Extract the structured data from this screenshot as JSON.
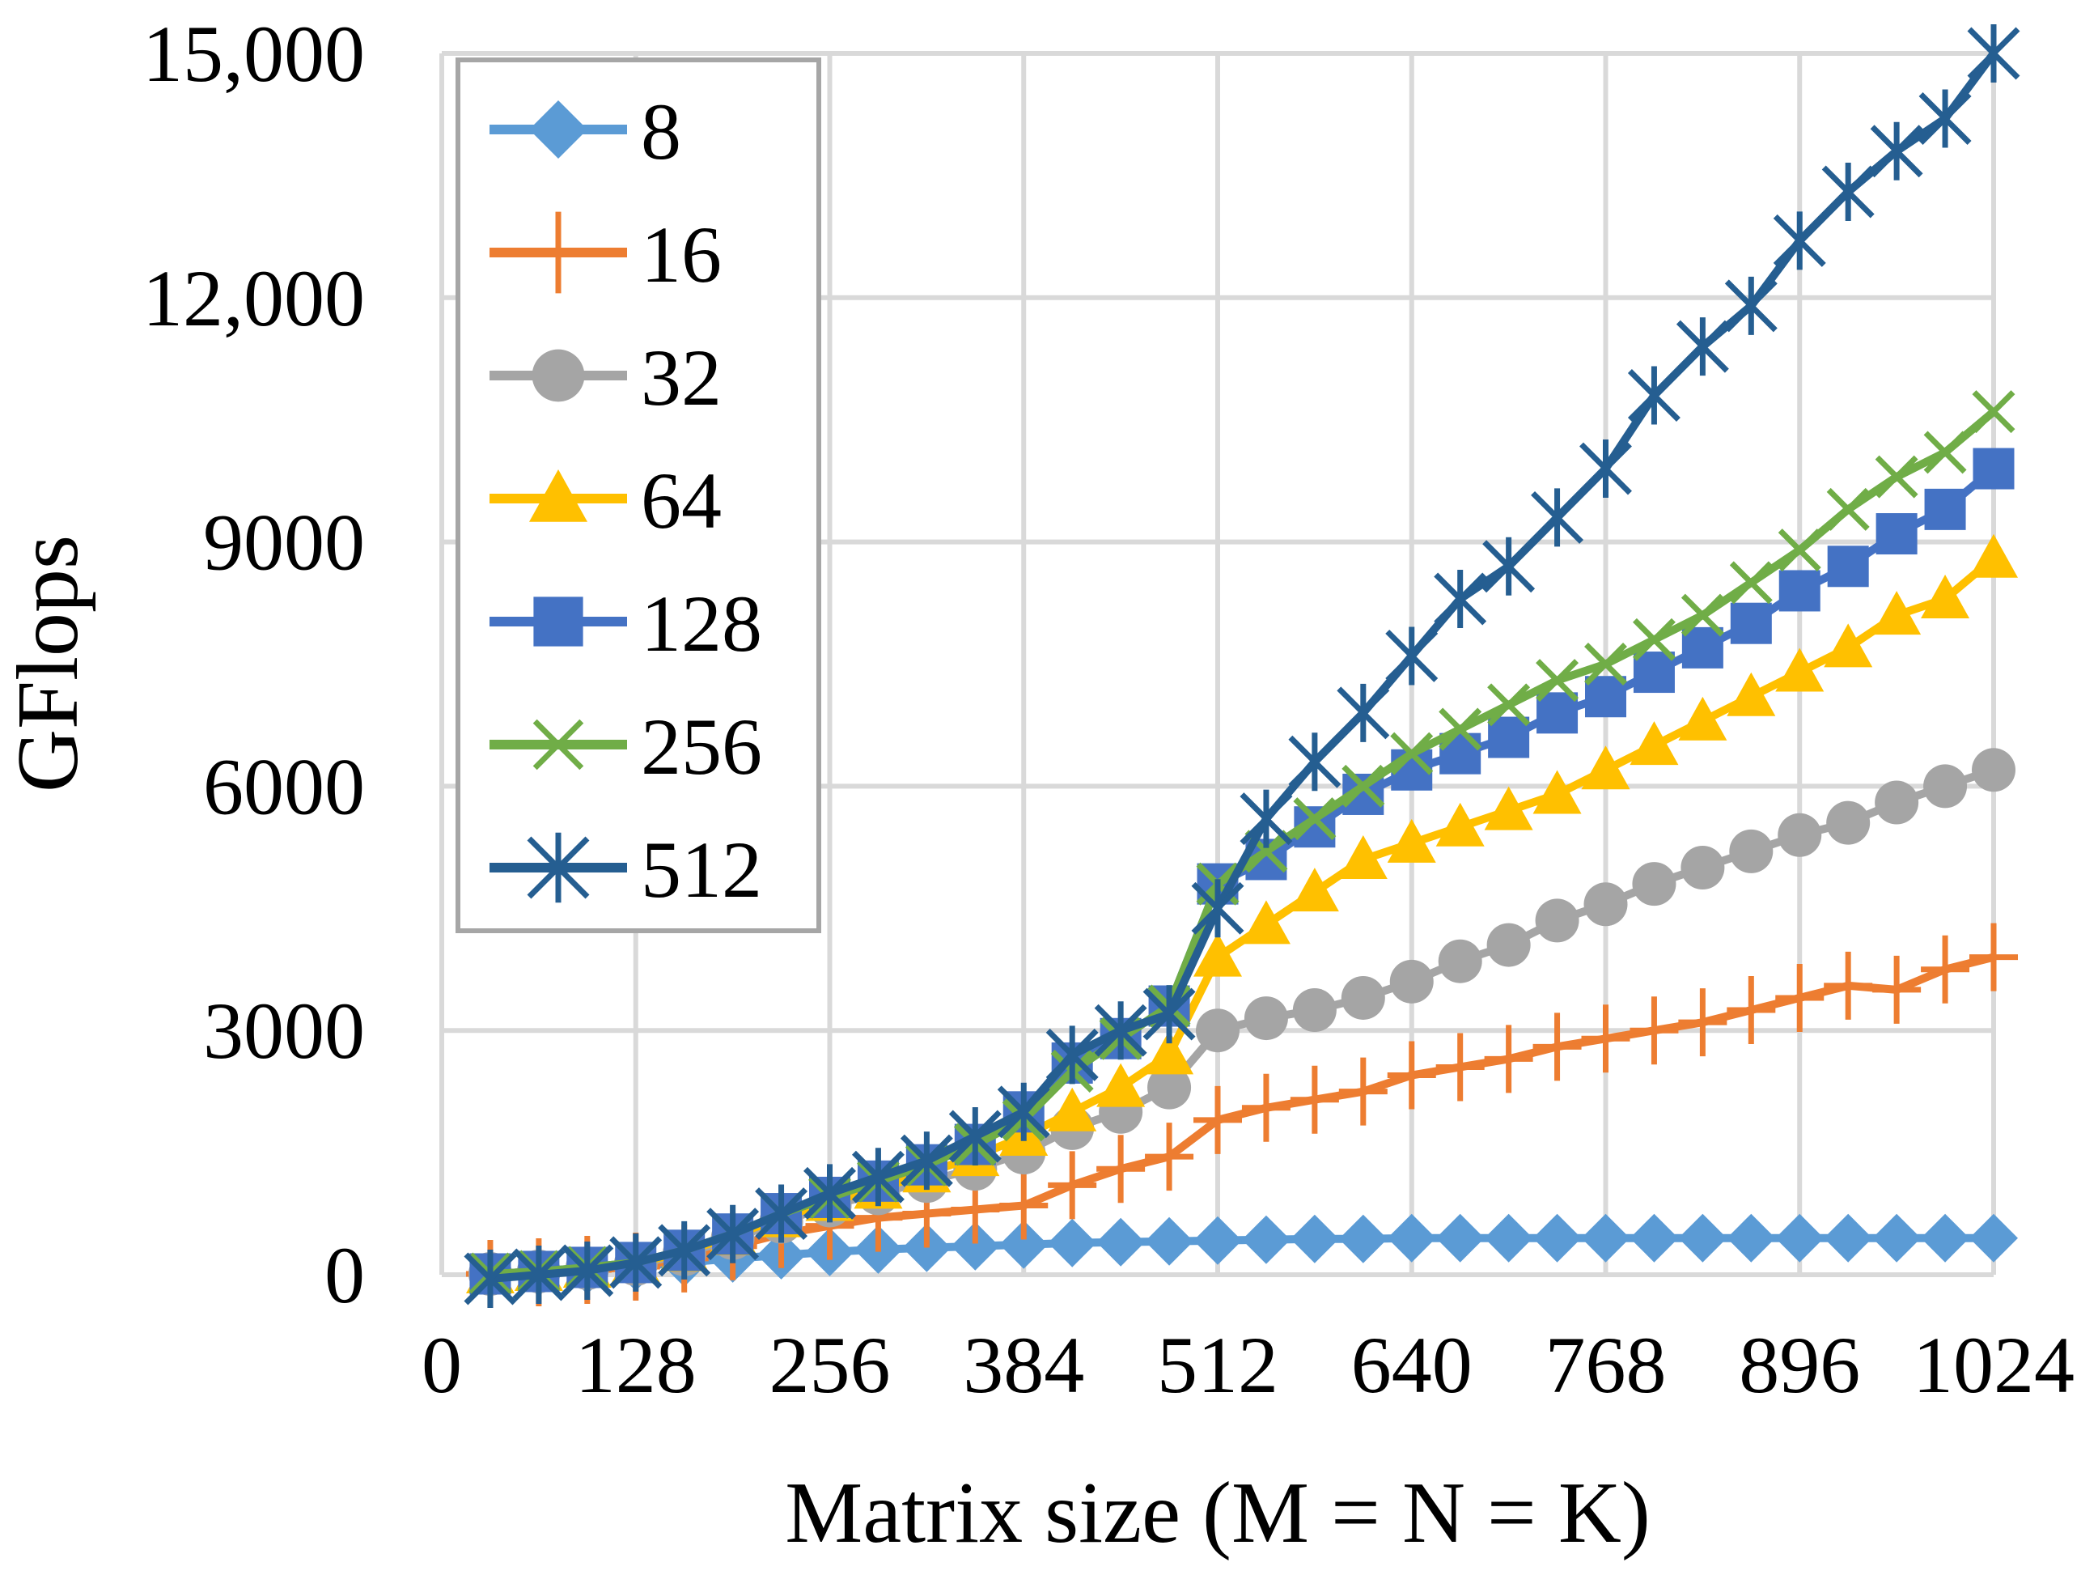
{
  "chart_data": {
    "type": "line",
    "title": "",
    "xlabel": "Matrix size (M = N = K)",
    "ylabel": "GFlops",
    "xlim": [
      0,
      1024
    ],
    "ylim": [
      0,
      15000
    ],
    "grid": true,
    "legend_position": "top-left",
    "x_ticks": [
      0,
      128,
      256,
      384,
      512,
      640,
      768,
      896,
      1024
    ],
    "x_tick_labels": [
      "0",
      "128",
      "256",
      "384",
      "512",
      "640",
      "768",
      "896",
      "1024"
    ],
    "y_ticks": [
      0,
      3000,
      6000,
      9000,
      12000,
      15000
    ],
    "y_tick_labels": [
      "0",
      "3000",
      "6000",
      "9000",
      "12,000",
      "15,000"
    ],
    "x": [
      32,
      64,
      96,
      128,
      160,
      192,
      224,
      256,
      288,
      320,
      352,
      384,
      416,
      448,
      480,
      512,
      544,
      576,
      608,
      640,
      672,
      704,
      736,
      768,
      800,
      832,
      864,
      896,
      928,
      960,
      992,
      1024
    ],
    "series": [
      {
        "name": "8",
        "color": "#5B9BD5",
        "marker": "diamond",
        "values": [
          10,
          30,
          60,
          100,
          150,
          200,
          240,
          280,
          310,
          330,
          350,
          370,
          390,
          400,
          410,
          420,
          430,
          440,
          440,
          450,
          450,
          450,
          450,
          450,
          450,
          450,
          450,
          450,
          450,
          450,
          450,
          450
        ]
      },
      {
        "name": "16",
        "color": "#ED7D31",
        "marker": "plus",
        "values": [
          10,
          30,
          60,
          100,
          200,
          350,
          500,
          600,
          700,
          750,
          800,
          850,
          1100,
          1300,
          1450,
          1900,
          2050,
          2150,
          2250,
          2450,
          2550,
          2650,
          2800,
          2900,
          3000,
          3100,
          3250,
          3400,
          3550,
          3500,
          3750,
          3900
        ]
      },
      {
        "name": "32",
        "color": "#A5A5A5",
        "marker": "circle",
        "values": [
          10,
          40,
          80,
          130,
          250,
          450,
          650,
          850,
          1000,
          1150,
          1300,
          1500,
          1800,
          2000,
          2300,
          3000,
          3150,
          3250,
          3400,
          3600,
          3850,
          4050,
          4350,
          4550,
          4800,
          5000,
          5200,
          5400,
          5550,
          5800,
          6000,
          6200
        ]
      },
      {
        "name": "64",
        "color": "#FFC000",
        "marker": "triangle",
        "values": [
          10,
          40,
          80,
          140,
          280,
          480,
          700,
          900,
          1050,
          1250,
          1450,
          1700,
          2000,
          2300,
          2700,
          3900,
          4300,
          4700,
          5100,
          5300,
          5500,
          5700,
          5900,
          6200,
          6500,
          6800,
          7100,
          7400,
          7700,
          8100,
          8300,
          8800
        ]
      },
      {
        "name": "128",
        "color": "#4472C4",
        "marker": "square",
        "values": [
          10,
          40,
          90,
          150,
          300,
          500,
          750,
          950,
          1150,
          1350,
          1600,
          2000,
          2600,
          2900,
          3300,
          4800,
          5100,
          5500,
          5900,
          6200,
          6400,
          6600,
          6900,
          7100,
          7400,
          7700,
          8000,
          8400,
          8700,
          9100,
          9400,
          9900
        ]
      },
      {
        "name": "256",
        "color": "#70AD47",
        "marker": "x",
        "values": [
          10,
          40,
          90,
          150,
          300,
          500,
          750,
          950,
          1150,
          1350,
          1600,
          1900,
          2500,
          2900,
          3300,
          4800,
          5200,
          5600,
          6000,
          6400,
          6700,
          7000,
          7300,
          7500,
          7800,
          8100,
          8500,
          8900,
          9400,
          9800,
          10100,
          10600
        ]
      },
      {
        "name": "512",
        "color": "#255E91",
        "marker": "asterisk",
        "values": [
          -50,
          0,
          50,
          150,
          300,
          500,
          750,
          1000,
          1200,
          1400,
          1700,
          2000,
          2700,
          3000,
          3200,
          4500,
          5600,
          6300,
          6900,
          7600,
          8300,
          8700,
          9300,
          9900,
          10800,
          11400,
          11900,
          12700,
          13300,
          13800,
          14200,
          15000
        ]
      }
    ]
  }
}
